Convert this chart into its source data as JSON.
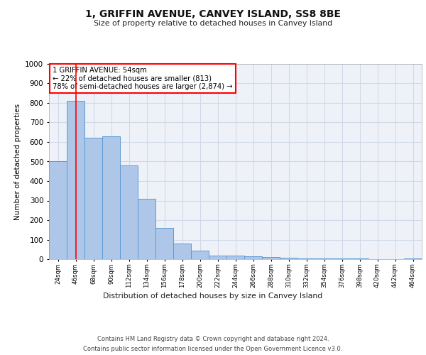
{
  "title": "1, GRIFFIN AVENUE, CANVEY ISLAND, SS8 8BE",
  "subtitle": "Size of property relative to detached houses in Canvey Island",
  "xlabel": "Distribution of detached houses by size in Canvey Island",
  "ylabel": "Number of detached properties",
  "footnote1": "Contains HM Land Registry data © Crown copyright and database right 2024.",
  "footnote2": "Contains public sector information licensed under the Open Government Licence v3.0.",
  "categories": [
    "24sqm",
    "46sqm",
    "68sqm",
    "90sqm",
    "112sqm",
    "134sqm",
    "156sqm",
    "178sqm",
    "200sqm",
    "222sqm",
    "244sqm",
    "266sqm",
    "288sqm",
    "310sqm",
    "332sqm",
    "354sqm",
    "376sqm",
    "398sqm",
    "420sqm",
    "442sqm",
    "464sqm"
  ],
  "values": [
    500,
    810,
    620,
    630,
    480,
    310,
    160,
    80,
    42,
    20,
    20,
    15,
    10,
    8,
    5,
    3,
    2,
    2,
    1,
    1,
    5
  ],
  "bar_color": "#aec6e8",
  "bar_edge_color": "#5b9bd5",
  "grid_color": "#d0d8e8",
  "plot_bg_color": "#eef2f8",
  "background_color": "#ffffff",
  "annotation_text": "1 GRIFFIN AVENUE: 54sqm\n← 22% of detached houses are smaller (813)\n78% of semi-detached houses are larger (2,874) →",
  "vline_x": 1,
  "ylim": [
    0,
    1000
  ],
  "yticks": [
    0,
    100,
    200,
    300,
    400,
    500,
    600,
    700,
    800,
    900,
    1000
  ]
}
